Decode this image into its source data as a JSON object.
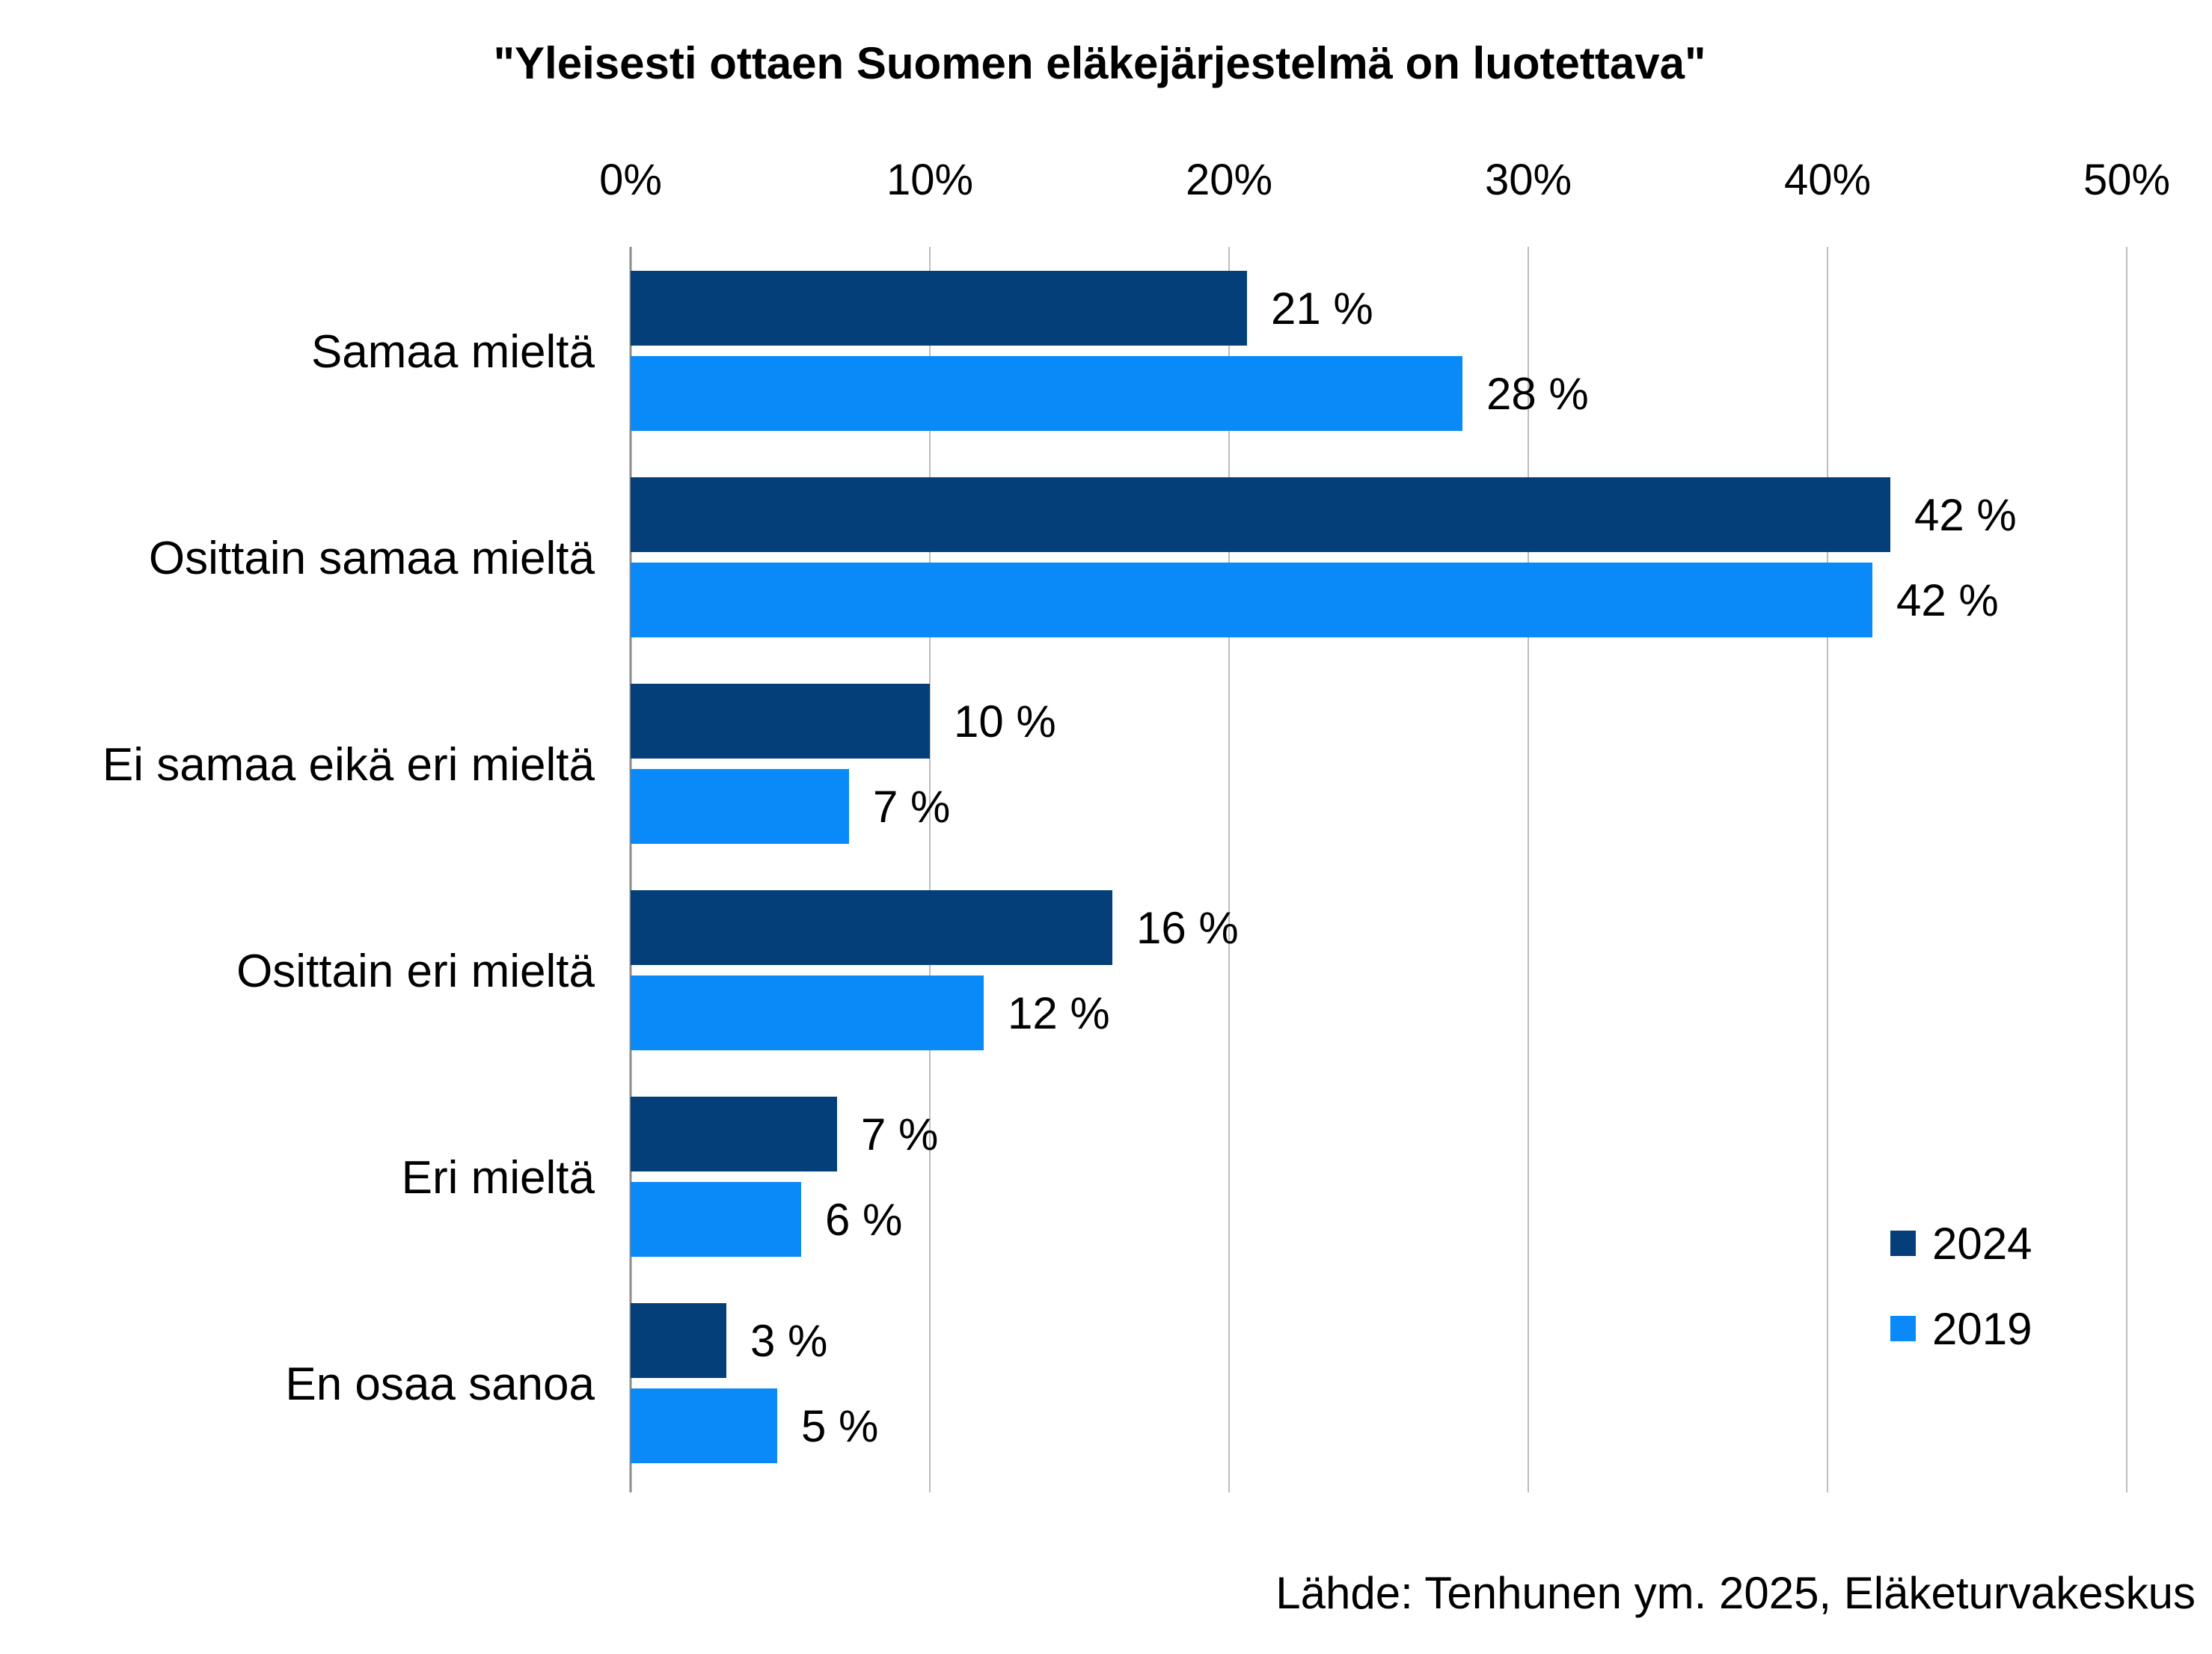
{
  "chart_data": {
    "type": "bar",
    "orientation": "horizontal",
    "title": "\"Yleisesti ottaen Suomen eläkejärjestelmä on luotettava\"",
    "categories": [
      "Samaa mieltä",
      "Osittain samaa mieltä",
      "Ei samaa eikä eri mieltä",
      "Osittain eri mieltä",
      "Eri mieltä",
      "En osaa sanoa"
    ],
    "series": [
      {
        "name": "2024",
        "color": "#053F79",
        "values": [
          20.6,
          42.1,
          10.0,
          16.1,
          6.9,
          3.2
        ],
        "labels": [
          "21 %",
          "42 %",
          "10 %",
          "16 %",
          "7 %",
          "3 %"
        ]
      },
      {
        "name": "2019",
        "color": "#0A8AF9",
        "values": [
          27.8,
          41.5,
          7.3,
          11.8,
          5.7,
          4.9
        ],
        "labels": [
          "28 %",
          "42 %",
          "7 %",
          "12 %",
          "6 %",
          "5 %"
        ]
      }
    ],
    "xlim": [
      0,
      50
    ],
    "xticks": [
      "0%",
      "10%",
      "20%",
      "30%",
      "40%",
      "50%"
    ],
    "xaxis_position": "top",
    "grid": true,
    "legend_position": "bottom-right",
    "source": "Lähde: Tenhunen ym. 2025, Eläketurvakeskus"
  }
}
